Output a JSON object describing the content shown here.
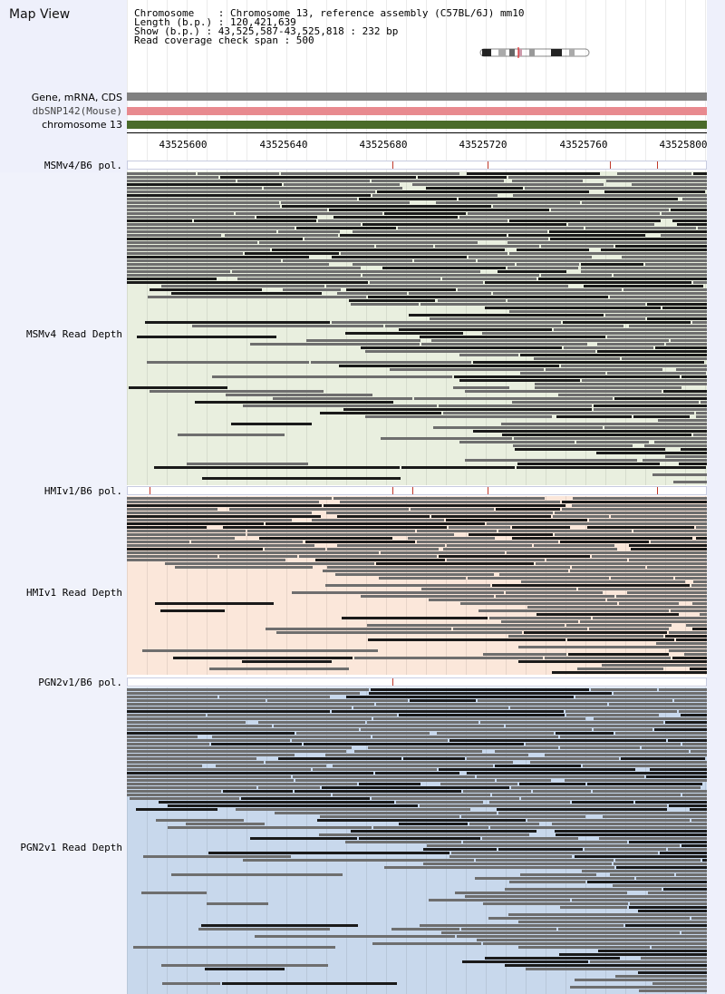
{
  "title": "Map View",
  "info": {
    "chromosome": "Chromosome    : Chromosome 13, reference assembly (C57BL/6J) mm10",
    "length": "Length (b.p.) : 120,421,639",
    "show": "Show (b.p.) : 43,525,587-43,525,818 : 232 bp",
    "coverage": "Read coverage check span : 500"
  },
  "tracks": {
    "gene": "Gene, mRNA, CDS",
    "dbsnp": "dbSNP142(Mouse)",
    "chromosome": "chromosome 13"
  },
  "axis": {
    "ticks": [
      "43525600",
      "43525640",
      "43525680",
      "43525720",
      "43525760",
      "43525800"
    ]
  },
  "panels": [
    {
      "pol_label": "MSMv4/B6 pol.",
      "depth_label": "MSMv4 Read Depth",
      "bg": "#e9efdf"
    },
    {
      "pol_label": "HMIv1/B6 pol.",
      "depth_label": "HMIv1 Read Depth",
      "bg": "#fbe7da"
    },
    {
      "pol_label": "PGN2v1/B6 pol.",
      "depth_label": "PGN2v1 Read Depth",
      "bg": "#c8d8ec"
    }
  ],
  "colors": {
    "gene_track": "#808080",
    "dbsnp_track": "#e88a8f",
    "chromosome_track": "#4a6b2a",
    "read_light": "#6e6e6e",
    "read_dark": "#1a1a1a",
    "snp_mark": "#c0392b"
  }
}
